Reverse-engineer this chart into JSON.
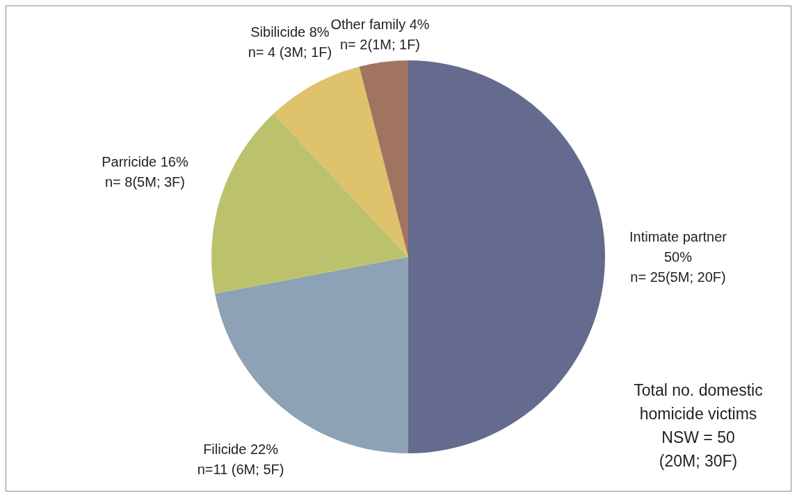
{
  "chart_data": {
    "type": "pie",
    "categories": [
      "Intimate partner",
      "Filicide",
      "Parricide",
      "Sibilicide",
      "Other  family"
    ],
    "values": [
      50,
      22,
      16,
      8,
      4
    ],
    "colors": [
      "#646b8e",
      "#8da2b5",
      "#bbc26b",
      "#dec26c",
      "#a07461"
    ],
    "value_labels": [
      "50%",
      "22%",
      "16%",
      "8%",
      "4%"
    ],
    "annotations": [
      {
        "text": "n= 25(5M; 20F)",
        "x": "Intimate partner"
      },
      {
        "text": "n=11 (6M; 5F)",
        "x": "Filicide"
      },
      {
        "text": "n= 8(5M; 3F)",
        "x": "Parricide"
      },
      {
        "text": "n= 4 (3M; 1F)",
        "x": "Sibilicide"
      },
      {
        "text": "n= 2(1M; 1F)",
        "x": "Other  family"
      },
      "Total  no. domestic\nhomicide victims\nNSW = 50\n(20M; 30F)"
    ],
    "legend": false
  }
}
